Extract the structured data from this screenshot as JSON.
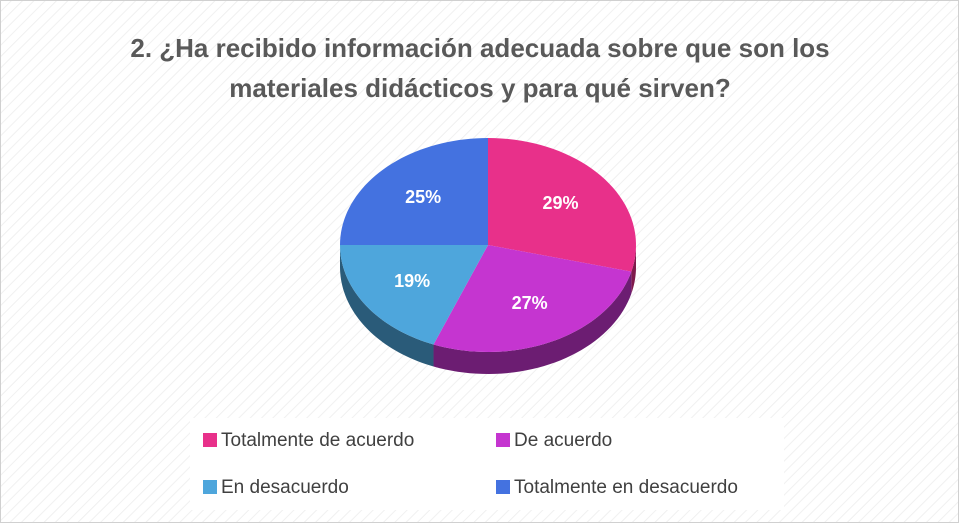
{
  "chart_data": {
    "type": "pie",
    "title": "2. ¿Ha recibido información adecuada sobre que son los materiales didácticos y para qué sirven?",
    "categories": [
      "Totalmente de acuerdo",
      "De acuerdo",
      "En desacuerdo",
      "Totalmente en desacuerdo"
    ],
    "values": [
      29,
      27,
      19,
      25
    ],
    "value_labels": [
      "29%",
      "27%",
      "19%",
      "25%"
    ],
    "colors": [
      "#e8308a",
      "#c535d0",
      "#4ea6dc",
      "#4472e0"
    ],
    "legend": "bottom"
  }
}
